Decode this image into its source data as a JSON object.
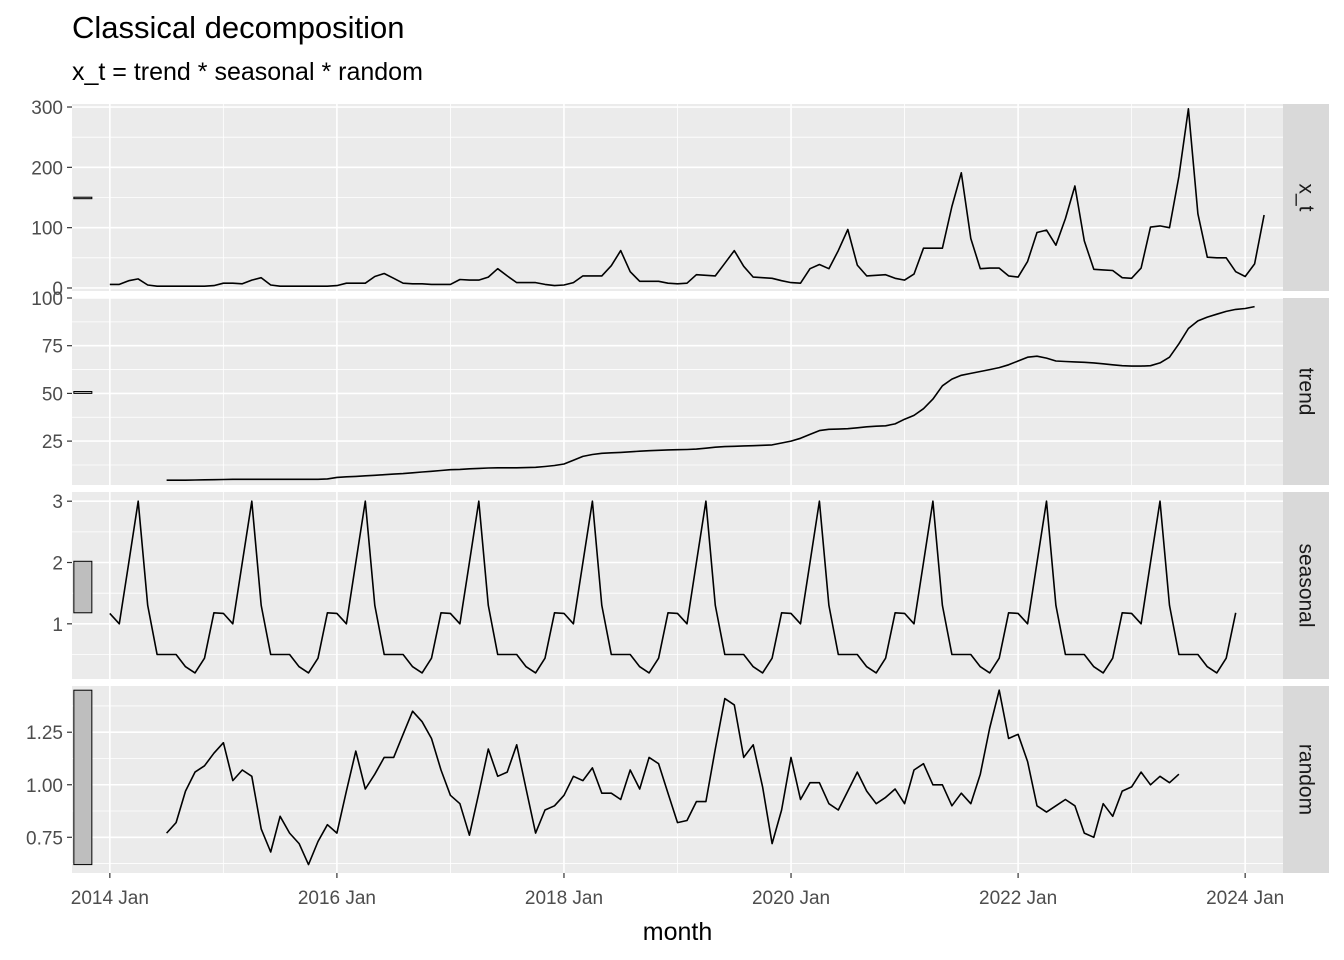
{
  "title": "Classical decomposition",
  "subtitle": "x_t = trend * seasonal * random",
  "chart_data": {
    "type": "line",
    "title": "Classical decomposition",
    "subtitle": "x_t = trend * seasonal * random",
    "xlabel": "month",
    "x_ticks": [
      "2014 Jan",
      "2016 Jan",
      "2018 Jan",
      "2020 Jan",
      "2022 Jan",
      "2024 Jan"
    ],
    "x_range": [
      "2013-09",
      "2024-05"
    ],
    "x_start": "2014-01",
    "grid": true,
    "colors": {
      "panel_bg": "#ebebeb",
      "strip_bg": "#d9d9d9",
      "grid": "#ffffff",
      "line": "#000000",
      "scale_bar": "#bebebe"
    },
    "panels": [
      {
        "name": "x_t",
        "ylim": [
          -5,
          305
        ],
        "y_ticks": [
          0,
          100,
          200,
          300
        ],
        "y_tick_labels": [
          "0",
          "100",
          "200",
          "300"
        ],
        "scale_bar": [
          149.5,
          150.5
        ],
        "values": [
          6,
          6,
          12,
          15,
          5,
          3,
          3,
          3,
          3,
          3,
          3,
          4,
          8,
          8,
          7,
          13,
          17,
          5,
          3,
          3,
          3,
          3,
          3,
          3,
          4,
          8,
          8,
          8,
          19,
          24,
          16,
          8,
          7,
          7,
          6,
          6,
          6,
          14,
          13,
          13,
          18,
          32,
          20,
          9,
          9,
          9,
          6,
          4,
          5,
          9,
          20,
          20,
          20,
          37,
          62,
          27,
          11,
          11,
          11,
          8,
          7,
          8,
          22,
          21,
          20,
          41,
          62,
          36,
          18,
          17,
          16,
          12,
          9,
          8,
          32,
          39,
          32,
          62,
          97,
          38,
          20,
          21,
          22,
          16,
          13,
          23,
          66,
          66,
          66,
          135,
          191,
          82,
          32,
          33,
          33,
          20,
          18,
          44,
          92,
          96,
          71,
          115,
          169,
          78,
          31,
          30,
          29,
          17,
          16,
          33,
          101,
          103,
          100,
          185,
          297,
          123,
          51,
          50,
          50,
          27,
          19,
          40,
          121
        ]
      },
      {
        "name": "trend",
        "ylim": [
          2,
          100
        ],
        "y_ticks": [
          25,
          50,
          75,
          100
        ],
        "y_tick_labels": [
          "25",
          "50",
          "75",
          "100"
        ],
        "scale_bar": [
          50,
          51
        ],
        "values": [
          null,
          null,
          null,
          null,
          null,
          null,
          4.5,
          4.5,
          4.5,
          4.6,
          4.7,
          4.8,
          4.9,
          5.0,
          5.0,
          5.0,
          5.0,
          5.0,
          5.0,
          5.0,
          5.0,
          5.0,
          5.0,
          5.2,
          6.0,
          6.3,
          6.5,
          6.8,
          7.1,
          7.4,
          7.7,
          8.0,
          8.4,
          8.8,
          9.2,
          9.6,
          10.0,
          10.2,
          10.5,
          10.7,
          10.9,
          11.0,
          11.0,
          11.0,
          11.1,
          11.3,
          11.7,
          12.2,
          13.0,
          15.0,
          17.0,
          18.0,
          18.6,
          18.9,
          19.1,
          19.4,
          19.7,
          20.0,
          20.2,
          20.4,
          20.5,
          20.6,
          20.8,
          21.3,
          21.8,
          22.1,
          22.3,
          22.5,
          22.6,
          22.8,
          23.0,
          24.0,
          25.0,
          26.5,
          28.5,
          30.5,
          31.2,
          31.3,
          31.5,
          32.0,
          32.5,
          32.8,
          33.0,
          34.0,
          36.5,
          38.5,
          42.0,
          47.0,
          54.0,
          57.5,
          59.5,
          60.5,
          61.5,
          62.5,
          63.5,
          65.0,
          67.0,
          69.0,
          69.5,
          68.5,
          67.0,
          66.7,
          66.5,
          66.3,
          66.0,
          65.5,
          65.0,
          64.5,
          64.3,
          64.3,
          64.5,
          66.0,
          69.0,
          76.0,
          84.0,
          88.0,
          90.0,
          91.5,
          93.0,
          94.0,
          94.5,
          95.5,
          null,
          null,
          null,
          null,
          null,
          null
        ]
      },
      {
        "name": "seasonal",
        "ylim": [
          0.1,
          3.15
        ],
        "y_ticks": [
          1,
          2,
          3
        ],
        "y_tick_labels": [
          "1",
          "2",
          "3"
        ],
        "scale_bar": [
          1.18,
          2.02
        ],
        "values": [
          1.17,
          1.0,
          2.0,
          3.0,
          1.3,
          0.5,
          0.5,
          0.5,
          0.3,
          0.2,
          0.44,
          1.18,
          1.17,
          1.0,
          2.0,
          3.0,
          1.3,
          0.5,
          0.5,
          0.5,
          0.3,
          0.2,
          0.44,
          1.18,
          1.17,
          1.0,
          2.0,
          3.0,
          1.3,
          0.5,
          0.5,
          0.5,
          0.3,
          0.2,
          0.44,
          1.18,
          1.17,
          1.0,
          2.0,
          3.0,
          1.3,
          0.5,
          0.5,
          0.5,
          0.3,
          0.2,
          0.44,
          1.18,
          1.17,
          1.0,
          2.0,
          3.0,
          1.3,
          0.5,
          0.5,
          0.5,
          0.3,
          0.2,
          0.44,
          1.18,
          1.17,
          1.0,
          2.0,
          3.0,
          1.3,
          0.5,
          0.5,
          0.5,
          0.3,
          0.2,
          0.44,
          1.18,
          1.17,
          1.0,
          2.0,
          3.0,
          1.3,
          0.5,
          0.5,
          0.5,
          0.3,
          0.2,
          0.44,
          1.18,
          1.17,
          1.0,
          2.0,
          3.0,
          1.3,
          0.5,
          0.5,
          0.5,
          0.3,
          0.2,
          0.44,
          1.18,
          1.17,
          1.0,
          2.0,
          3.0,
          1.3,
          0.5,
          0.5,
          0.5,
          0.3,
          0.2,
          0.44,
          1.18,
          1.17,
          1.0,
          2.0,
          3.0,
          1.3,
          0.5,
          0.5,
          0.5,
          0.3,
          0.2,
          0.44,
          1.18
        ]
      },
      {
        "name": "random",
        "ylim": [
          0.58,
          1.47
        ],
        "y_ticks": [
          0.75,
          1.0,
          1.25
        ],
        "y_tick_labels": [
          "0.75",
          "1.00",
          "1.25"
        ],
        "scale_bar": [
          0.62,
          1.45
        ],
        "values": [
          null,
          null,
          null,
          null,
          null,
          null,
          0.77,
          0.82,
          0.97,
          1.06,
          1.09,
          1.15,
          1.2,
          1.02,
          1.07,
          1.04,
          0.79,
          0.68,
          0.85,
          0.77,
          0.72,
          0.62,
          0.73,
          0.81,
          0.77,
          0.97,
          1.16,
          0.98,
          1.05,
          1.13,
          1.13,
          1.24,
          1.35,
          1.3,
          1.22,
          1.07,
          0.95,
          0.91,
          0.76,
          0.96,
          1.17,
          1.04,
          1.06,
          1.19,
          0.98,
          0.77,
          0.88,
          0.9,
          0.95,
          1.04,
          1.02,
          1.08,
          0.96,
          0.96,
          0.93,
          1.07,
          0.98,
          1.13,
          1.1,
          0.96,
          0.82,
          0.83,
          0.92,
          0.92,
          1.17,
          1.41,
          1.38,
          1.13,
          1.19,
          0.99,
          0.72,
          0.88,
          1.13,
          0.93,
          1.01,
          1.01,
          0.91,
          0.88,
          0.97,
          1.06,
          0.97,
          0.91,
          0.94,
          0.98,
          0.91,
          1.07,
          1.1,
          1.0,
          1.0,
          0.9,
          0.96,
          0.91,
          1.05,
          1.27,
          1.45,
          1.22,
          1.24,
          1.11,
          0.9,
          0.87,
          0.9,
          0.93,
          0.9,
          0.77,
          0.75,
          0.91,
          0.85,
          0.97,
          0.99,
          1.06,
          1.0,
          1.04,
          1.01,
          1.05,
          null,
          null,
          null,
          null,
          null,
          null
        ]
      }
    ]
  }
}
